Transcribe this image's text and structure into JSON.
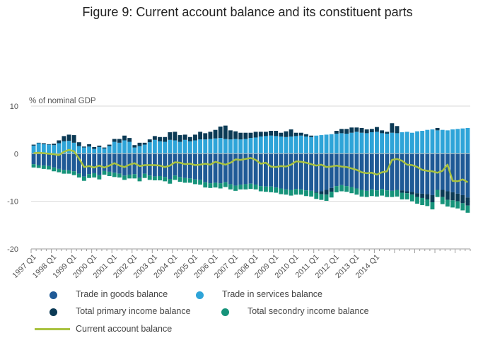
{
  "page_title": "Figure 9: Current account balance and its constituent parts",
  "chart_data": {
    "type": "bar",
    "stacked": true,
    "title": "Figure 9: Current account balance and its constituent parts",
    "ylabel": "% of nominal GDP",
    "xlabel": "",
    "ylim": [
      -20,
      10
    ],
    "yticks": [
      10,
      0,
      -10,
      -20
    ],
    "grid": true,
    "legend_position": "bottom",
    "start_year": 1997,
    "tick_labels": [
      "1997 Q1",
      "1998 Q1",
      "1999 Q1",
      "2000 Q1",
      "2001 Q1",
      "2002 Q1",
      "2003 Q1",
      "2004 Q1",
      "2005 Q1",
      "2006 Q1",
      "2007 Q1",
      "2008 Q1",
      "2009 Q1",
      "2010 Q1",
      "2011 Q1",
      "2012 Q1",
      "2013 Q1",
      "2014 Q1"
    ],
    "series": [
      {
        "name": "Trade in goods balance",
        "color": "#1f5a96",
        "kind": "bar",
        "values": [
          -2.2,
          -2.4,
          -2.5,
          -2.6,
          -2.9,
          -3.2,
          -3.4,
          -3.5,
          -3.7,
          -4.2,
          -4.8,
          -4.3,
          -4.1,
          -4.5,
          -3.6,
          -3.8,
          -4.0,
          -4.2,
          -4.6,
          -4.4,
          -4.3,
          -5.0,
          -4.2,
          -4.6,
          -4.8,
          -4.7,
          -4.9,
          -5.3,
          -4.6,
          -4.9,
          -5.1,
          -5.2,
          -5.4,
          -5.5,
          -6.0,
          -6.2,
          -6.1,
          -6.2,
          -6.0,
          -6.4,
          -6.7,
          -6.5,
          -6.4,
          -6.3,
          -6.5,
          -6.8,
          -6.9,
          -6.9,
          -7.1,
          -7.3,
          -7.5,
          -7.6,
          -7.4,
          -7.5,
          -7.7,
          -7.8,
          -8.0,
          -7.9,
          -7.6,
          -7.2,
          -6.8,
          -6.6,
          -6.8,
          -7.0,
          -7.3,
          -7.6,
          -7.8,
          -7.5,
          -7.7,
          -7.4,
          -7.7,
          -7.8,
          -7.6,
          -7.7,
          -7.9,
          -8.0,
          -8.3,
          -8.4,
          -8.5,
          -8.7,
          -7.6,
          -7.6,
          -7.9,
          -8.1,
          -8.4,
          -8.7,
          -9.2
        ]
      },
      {
        "name": "Trade in services balance",
        "color": "#2ea4d8",
        "kind": "bar",
        "values": [
          1.7,
          2.2,
          2.0,
          1.9,
          1.8,
          2.2,
          2.6,
          2.7,
          2.3,
          1.6,
          1.3,
          1.5,
          1.0,
          1.4,
          1.1,
          1.6,
          2.5,
          2.3,
          2.8,
          2.5,
          1.3,
          1.6,
          1.9,
          2.4,
          2.9,
          2.6,
          2.5,
          2.9,
          2.8,
          2.5,
          2.9,
          2.6,
          2.8,
          3.0,
          3.0,
          3.1,
          3.2,
          3.3,
          3.1,
          3.0,
          3.1,
          3.0,
          3.1,
          3.3,
          3.4,
          3.6,
          3.7,
          3.8,
          3.7,
          3.6,
          3.5,
          3.6,
          3.7,
          3.8,
          3.6,
          3.5,
          3.8,
          3.9,
          4.0,
          4.1,
          4.2,
          4.3,
          4.2,
          4.4,
          4.6,
          4.4,
          4.3,
          4.5,
          4.6,
          4.3,
          4.2,
          4.4,
          4.3,
          4.5,
          4.6,
          4.4,
          4.7,
          4.8,
          5.0,
          5.1,
          4.9,
          5.0,
          4.9,
          5.1,
          5.2,
          5.3,
          5.4
        ]
      },
      {
        "name": "Total primary income balance",
        "color": "#0b3a55",
        "kind": "bar",
        "values": [
          0.2,
          0.1,
          0.2,
          0.1,
          0.3,
          0.6,
          1.1,
          1.3,
          1.6,
          0.8,
          0.2,
          0.5,
          0.4,
          0.3,
          0.2,
          0.3,
          0.6,
          0.8,
          1.0,
          0.8,
          0.5,
          0.7,
          0.4,
          0.6,
          0.8,
          0.9,
          1.0,
          1.6,
          1.8,
          1.4,
          1.1,
          0.9,
          1.2,
          1.6,
          1.3,
          1.5,
          1.8,
          2.4,
          2.8,
          1.9,
          1.6,
          1.4,
          1.3,
          1.1,
          1.2,
          1.0,
          0.9,
          1.0,
          1.1,
          0.8,
          1.2,
          1.5,
          0.7,
          0.6,
          0.5,
          0.3,
          -0.2,
          -0.6,
          -1.0,
          -0.8,
          0.6,
          0.9,
          1.0,
          1.1,
          0.9,
          1.0,
          0.8,
          0.7,
          1.0,
          0.6,
          0.4,
          2.0,
          1.5,
          -0.5,
          -0.4,
          -0.6,
          -0.8,
          -0.9,
          -1.1,
          -1.5,
          0.5,
          -1.5,
          -1.8,
          -1.7,
          -1.6,
          -1.7,
          -1.7
        ]
      },
      {
        "name": "Total secondry income balance",
        "color": "#16937a",
        "kind": "bar",
        "values": [
          -0.7,
          -0.6,
          -0.7,
          -0.7,
          -0.8,
          -0.7,
          -0.8,
          -0.7,
          -0.8,
          -0.8,
          -0.9,
          -0.8,
          -0.9,
          -0.9,
          -0.8,
          -0.9,
          -0.9,
          -0.8,
          -0.9,
          -0.8,
          -0.9,
          -0.8,
          -0.9,
          -0.9,
          -0.8,
          -0.9,
          -0.9,
          -1.0,
          -0.9,
          -1.0,
          -1.0,
          -0.9,
          -1.0,
          -1.0,
          -1.1,
          -1.0,
          -1.0,
          -1.1,
          -1.0,
          -1.1,
          -1.1,
          -1.0,
          -1.1,
          -1.1,
          -1.0,
          -1.1,
          -1.1,
          -1.2,
          -1.1,
          -1.2,
          -1.1,
          -1.2,
          -1.2,
          -1.1,
          -1.2,
          -1.2,
          -1.3,
          -1.2,
          -1.3,
          -1.2,
          -1.3,
          -1.3,
          -1.2,
          -1.3,
          -1.3,
          -1.4,
          -1.3,
          -1.4,
          -1.3,
          -1.4,
          -1.4,
          -1.3,
          -1.4,
          -1.4,
          -1.3,
          -1.4,
          -1.4,
          -1.5,
          -1.4,
          -1.5,
          -1.5,
          -1.5,
          -1.4,
          -1.5,
          -1.5,
          -1.5,
          -1.5
        ]
      },
      {
        "name": "Current account balance",
        "color": "#a9c23f",
        "kind": "line",
        "values": [
          0.1,
          0.2,
          0.1,
          0.0,
          -0.1,
          -0.3,
          0.4,
          0.8,
          0.5,
          -1.0,
          -2.8,
          -2.6,
          -2.9,
          -2.5,
          -2.9,
          -2.5,
          -2.0,
          -2.5,
          -2.8,
          -2.3,
          -2.0,
          -2.6,
          -2.4,
          -2.4,
          -2.4,
          -2.5,
          -2.8,
          -2.5,
          -1.8,
          -1.9,
          -2.2,
          -2.1,
          -2.4,
          -2.3,
          -2.1,
          -2.3,
          -1.7,
          -2.0,
          -2.3,
          -1.9,
          -1.2,
          -1.3,
          -1.1,
          -0.9,
          -1.3,
          -2.1,
          -1.9,
          -2.7,
          -2.8,
          -2.6,
          -2.7,
          -2.3,
          -1.6,
          -1.7,
          -1.9,
          -2.2,
          -2.5,
          -2.3,
          -2.8,
          -2.7,
          -2.5,
          -2.7,
          -2.8,
          -3.1,
          -3.4,
          -3.9,
          -4.1,
          -4.0,
          -4.4,
          -3.9,
          -3.7,
          -1.3,
          -1.1,
          -1.5,
          -2.3,
          -2.4,
          -2.8,
          -3.4,
          -3.6,
          -3.7,
          -4.0,
          -3.6,
          -2.3,
          -5.7,
          -5.8,
          -5.4,
          -6.0
        ]
      }
    ]
  }
}
